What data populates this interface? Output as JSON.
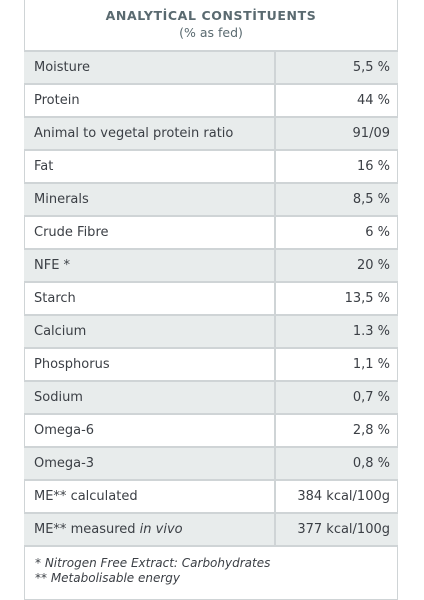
{
  "header": {
    "title": "ANALYTİCAL CONSTİTUENTS",
    "subtitle": "(% as fed)"
  },
  "rows": [
    {
      "name": "Moisture",
      "value": "5,5 %"
    },
    {
      "name": "Protein",
      "value": "44 %"
    },
    {
      "name": "Animal to vegetal protein ratio",
      "value": "91/09"
    },
    {
      "name": "Fat",
      "value": "16 %"
    },
    {
      "name": "Minerals",
      "value": "8,5 %"
    },
    {
      "name": "Crude Fibre",
      "value": "6 %"
    },
    {
      "name": "NFE *",
      "value": "20 %"
    },
    {
      "name": "Starch",
      "value": "13,5 %"
    },
    {
      "name": "Calcium",
      "value": "1.3 %"
    },
    {
      "name": "Phosphorus",
      "value": "1,1 %"
    },
    {
      "name": "Sodium",
      "value": "0,7 %"
    },
    {
      "name": "Omega-6",
      "value": "2,8 %"
    },
    {
      "name": "Omega-3",
      "value": "0,8 %"
    },
    {
      "name": "ME** calculated",
      "value": "384 kcal/100g"
    },
    {
      "name_prefix": "ME** measured ",
      "name_italic": "in vivo",
      "value": "377 kcal/100g"
    }
  ],
  "footnotes": [
    "* Nitrogen Free Extract: Carbohydrates",
    "** Metabolisable energy"
  ]
}
